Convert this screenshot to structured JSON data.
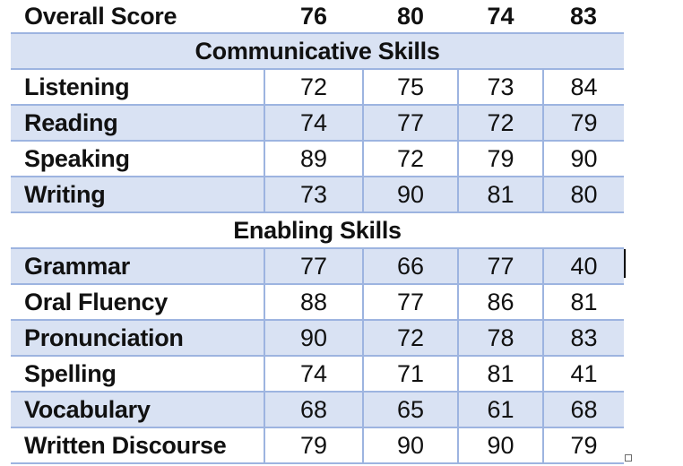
{
  "overall": {
    "label": "Overall Score",
    "scores": [
      "76",
      "80",
      "74",
      "83"
    ]
  },
  "sections": [
    {
      "title": "Communicative Skills",
      "rows": [
        {
          "label": "Listening",
          "scores": [
            "72",
            "75",
            "73",
            "84"
          ]
        },
        {
          "label": "Reading",
          "scores": [
            "74",
            "77",
            "72",
            "79"
          ]
        },
        {
          "label": "Speaking",
          "scores": [
            "89",
            "72",
            "79",
            "90"
          ]
        },
        {
          "label": "Writing",
          "scores": [
            "73",
            "90",
            "81",
            "80"
          ]
        }
      ]
    },
    {
      "title": "Enabling Skills",
      "rows": [
        {
          "label": "Grammar",
          "scores": [
            "77",
            "66",
            "77",
            "40"
          ]
        },
        {
          "label": "Oral Fluency",
          "scores": [
            "88",
            "77",
            "86",
            "81"
          ]
        },
        {
          "label": "Pronunciation",
          "scores": [
            "90",
            "72",
            "78",
            "83"
          ]
        },
        {
          "label": "Spelling",
          "scores": [
            "74",
            "71",
            "81",
            "41"
          ]
        },
        {
          "label": "Vocabulary",
          "scores": [
            "68",
            "65",
            "61",
            "68"
          ]
        },
        {
          "label": "Written Discourse",
          "scores": [
            "79",
            "90",
            "90",
            "79"
          ]
        }
      ]
    }
  ],
  "colors": {
    "shaded_row": "#d9e2f3",
    "border": "#9db4e0",
    "text": "#111111"
  }
}
